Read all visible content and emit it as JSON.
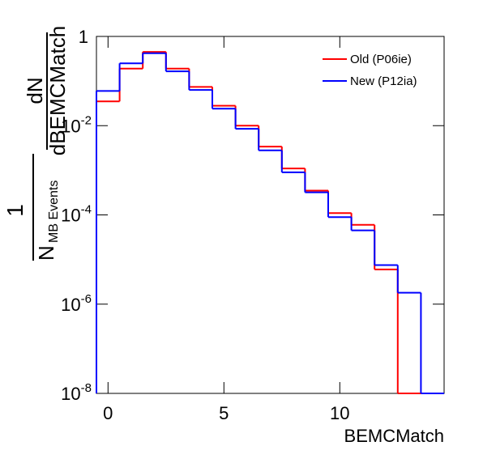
{
  "chart_data": {
    "type": "histogram",
    "x_label": "BEMCMatch",
    "y_label": {
      "numerator": "1",
      "denominator": "N",
      "denominator_sub": "MB Events",
      "frac_numerator": "dN",
      "frac_denominator": "dBEMCMatch"
    },
    "bins": [
      -0.5,
      0.5,
      1.5,
      2.5,
      3.5,
      4.5,
      5.5,
      6.5,
      7.5,
      8.5,
      9.5,
      10.5,
      11.5,
      12.5,
      13.5,
      14.5
    ],
    "series": [
      {
        "name": "Old (P06ie)",
        "color": "#ff0000",
        "values": [
          0.035,
          0.19,
          0.45,
          0.19,
          0.074,
          0.028,
          0.01,
          0.0034,
          0.0011,
          0.00035,
          0.00011,
          6e-05,
          6e-06,
          0,
          0
        ]
      },
      {
        "name": "New (P12ia)",
        "color": "#0000ff",
        "values": [
          0.06,
          0.25,
          0.42,
          0.165,
          0.063,
          0.024,
          0.0085,
          0.0028,
          0.0009,
          0.00032,
          8.9e-05,
          4.5e-05,
          7.5e-06,
          1.8e-06,
          0
        ]
      }
    ],
    "xlim": [
      -0.5,
      14.5
    ],
    "xticks": [
      0,
      5,
      10
    ],
    "ylim": [
      1e-08,
      1
    ],
    "yticks": [
      {
        "value": 1e-08,
        "label": "10-8"
      },
      {
        "value": 1e-06,
        "label": "10-6"
      },
      {
        "value": 0.0001,
        "label": "10-4"
      },
      {
        "value": 0.01,
        "label": "10-2"
      },
      1
    ],
    "log_y": true,
    "legend": "upper right"
  }
}
